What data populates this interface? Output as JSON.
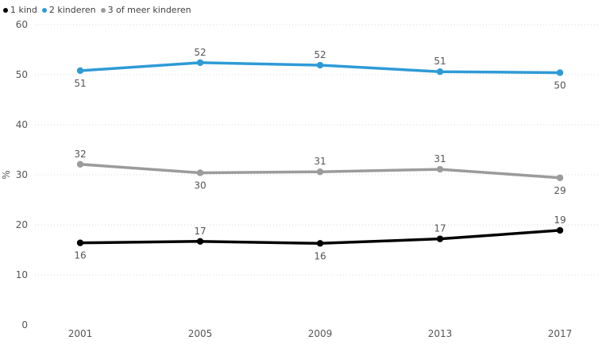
{
  "chart_data": {
    "type": "line",
    "ylabel": "%",
    "ylim": [
      0,
      60
    ],
    "yticks": [
      0,
      10,
      20,
      30,
      40,
      50,
      60
    ],
    "categories": [
      "2001",
      "2005",
      "2009",
      "2013",
      "2017"
    ],
    "grid": "horizontal dotted",
    "legend_position": "top-left",
    "series": [
      {
        "name": "1 kind",
        "color": "#000000",
        "values": [
          16.4,
          16.7,
          16.3,
          17.2,
          18.9
        ],
        "labels": [
          "16",
          "17",
          "16",
          "17",
          "19"
        ],
        "label_side": [
          "below",
          "above",
          "below",
          "above",
          "above"
        ]
      },
      {
        "name": "2 kinderen",
        "color": "#2e9bd6",
        "values": [
          50.8,
          52.4,
          51.9,
          50.6,
          50.4
        ],
        "labels": [
          "51",
          "52",
          "52",
          "51",
          "50"
        ],
        "label_side": [
          "below",
          "above",
          "above",
          "above",
          "below"
        ]
      },
      {
        "name": "3 of meer kinderen",
        "color": "#9b9b9b",
        "values": [
          32.1,
          30.4,
          30.6,
          31.1,
          29.4
        ],
        "labels": [
          "32",
          "30",
          "31",
          "31",
          "29"
        ],
        "label_side": [
          "above",
          "below",
          "above",
          "above",
          "below"
        ]
      }
    ]
  }
}
